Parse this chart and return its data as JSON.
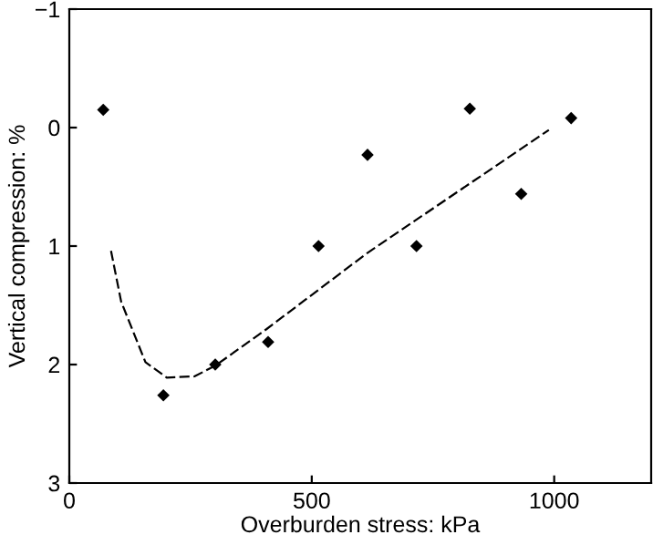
{
  "chart_data": {
    "type": "scatter",
    "xlabel": "Overburden stress: kPa",
    "ylabel": "Vertical compression: %",
    "xlim": [
      0,
      1200
    ],
    "xticks": [
      0,
      500,
      1000
    ],
    "ylim": [
      3,
      -1
    ],
    "yticks": [
      {
        "value": -1,
        "label": "−1"
      },
      0,
      1,
      2,
      3
    ],
    "grid": false,
    "legend": false,
    "series": [
      {
        "color": "#000000",
        "marker": "diamond",
        "x": [
          70,
          194,
          301,
          410,
          514,
          615,
          716,
          826,
          932,
          1035
        ],
        "values": [
          -0.15,
          2.26,
          2.0,
          1.81,
          1.0,
          0.23,
          1.0,
          -0.16,
          0.56,
          -0.08
        ]
      },
      {
        "type": "line",
        "color": "#000000",
        "marker": "none",
        "line_style": "dashed",
        "x": [
          86,
          107,
          157,
          201,
          258,
          301,
          407,
          614,
          989
        ],
        "values": [
          1.04,
          1.47,
          1.98,
          2.11,
          2.1,
          2.01,
          1.7,
          1.06,
          0.02
        ]
      }
    ]
  }
}
